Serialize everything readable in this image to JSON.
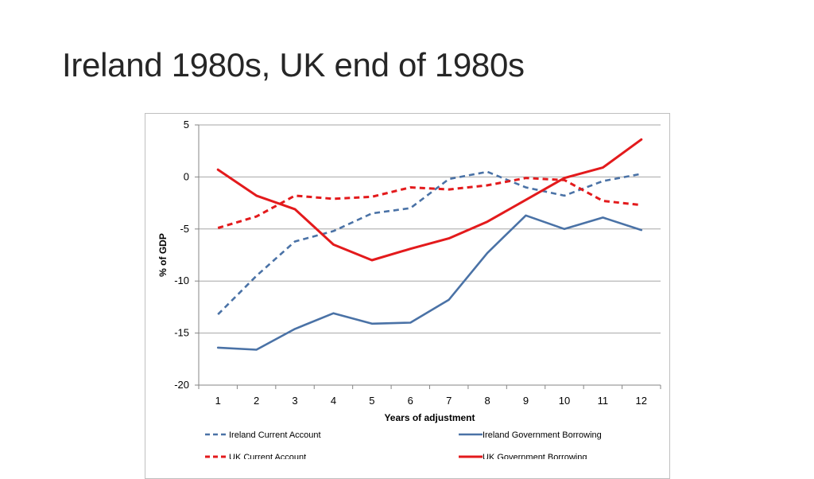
{
  "slide": {
    "title": "Ireland 1980s, UK end of 1980s"
  },
  "chart_data": {
    "type": "line",
    "title": "",
    "xlabel": "Years of adjustment",
    "ylabel": "% of GDP",
    "x": [
      1,
      2,
      3,
      4,
      5,
      6,
      7,
      8,
      9,
      10,
      11,
      12
    ],
    "xlim": [
      0.5,
      12.5
    ],
    "ylim": [
      -20,
      5
    ],
    "yticks": [
      5,
      0,
      -5,
      -10,
      -15,
      -20
    ],
    "grid": true,
    "legend_position": "bottom",
    "series": [
      {
        "name": "Ireland Current Account",
        "color": "#4a72a6",
        "style": "dashed",
        "values": [
          -13.2,
          -9.5,
          -6.2,
          -5.2,
          -3.5,
          -3.0,
          -0.2,
          0.5,
          -1.0,
          -1.8,
          -0.4,
          0.3
        ]
      },
      {
        "name": "Ireland Government Borrowing",
        "color": "#4a72a6",
        "style": "solid",
        "values": [
          -16.4,
          -16.6,
          -14.6,
          -13.1,
          -14.1,
          -14.0,
          -11.8,
          -7.3,
          -3.7,
          -5.0,
          -3.9,
          -5.1
        ]
      },
      {
        "name": "UK Current Account",
        "color": "#e31a1c",
        "style": "dashed",
        "values": [
          -4.9,
          -3.8,
          -1.8,
          -2.1,
          -1.9,
          -1.0,
          -1.2,
          -0.8,
          -0.1,
          -0.3,
          -2.3,
          -2.7
        ]
      },
      {
        "name": "UK Government Borrowing",
        "color": "#e31a1c",
        "style": "solid",
        "values": [
          0.7,
          -1.8,
          -3.1,
          -6.5,
          -8.0,
          -6.9,
          -5.9,
          -4.3,
          -2.2,
          -0.1,
          0.9,
          3.6
        ]
      }
    ]
  }
}
